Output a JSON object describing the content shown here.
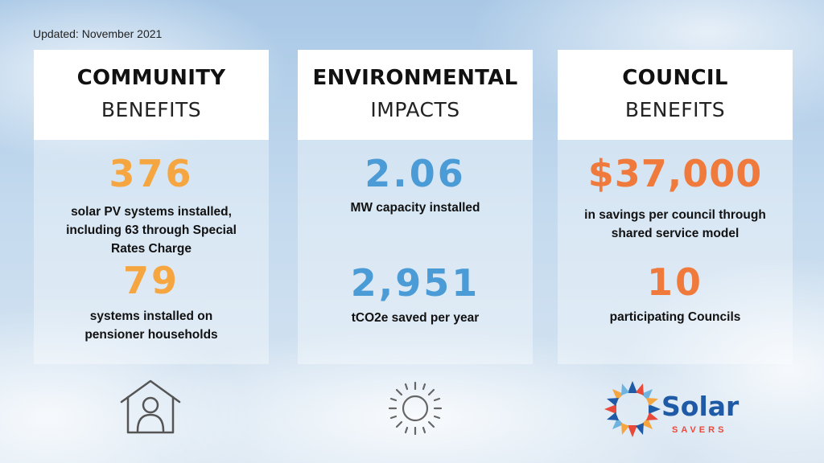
{
  "updated": "Updated: November 2021",
  "colors": {
    "orange_light": "#f5a640",
    "blue": "#4a9bd6",
    "orange_dark": "#f07a3c"
  },
  "cards": [
    {
      "title_bold": "COMMUNITY",
      "title_light": "BENEFITS",
      "stats": [
        {
          "value": "376",
          "desc": "solar PV systems installed, including 63 through Special Rates Charge"
        },
        {
          "value": "79",
          "desc": "systems installed on pensioner households"
        }
      ]
    },
    {
      "title_bold": "ENVIRONMENTAL",
      "title_light": "IMPACTS",
      "stats": [
        {
          "value": "2.06",
          "desc": "MW capacity installed"
        },
        {
          "value": "2,951",
          "desc": "tCO2e saved per year"
        }
      ]
    },
    {
      "title_bold": "COUNCIL",
      "title_light": "BENEFITS",
      "stats": [
        {
          "value": "$37,000",
          "desc": "in savings per council through shared service model"
        },
        {
          "value": "10",
          "desc": "participating Councils"
        }
      ]
    }
  ],
  "icons": [
    "house-person-icon",
    "sun-icon",
    "solar-savers-logo"
  ],
  "logo": {
    "word": "Solar",
    "sub": "SAVERS"
  }
}
